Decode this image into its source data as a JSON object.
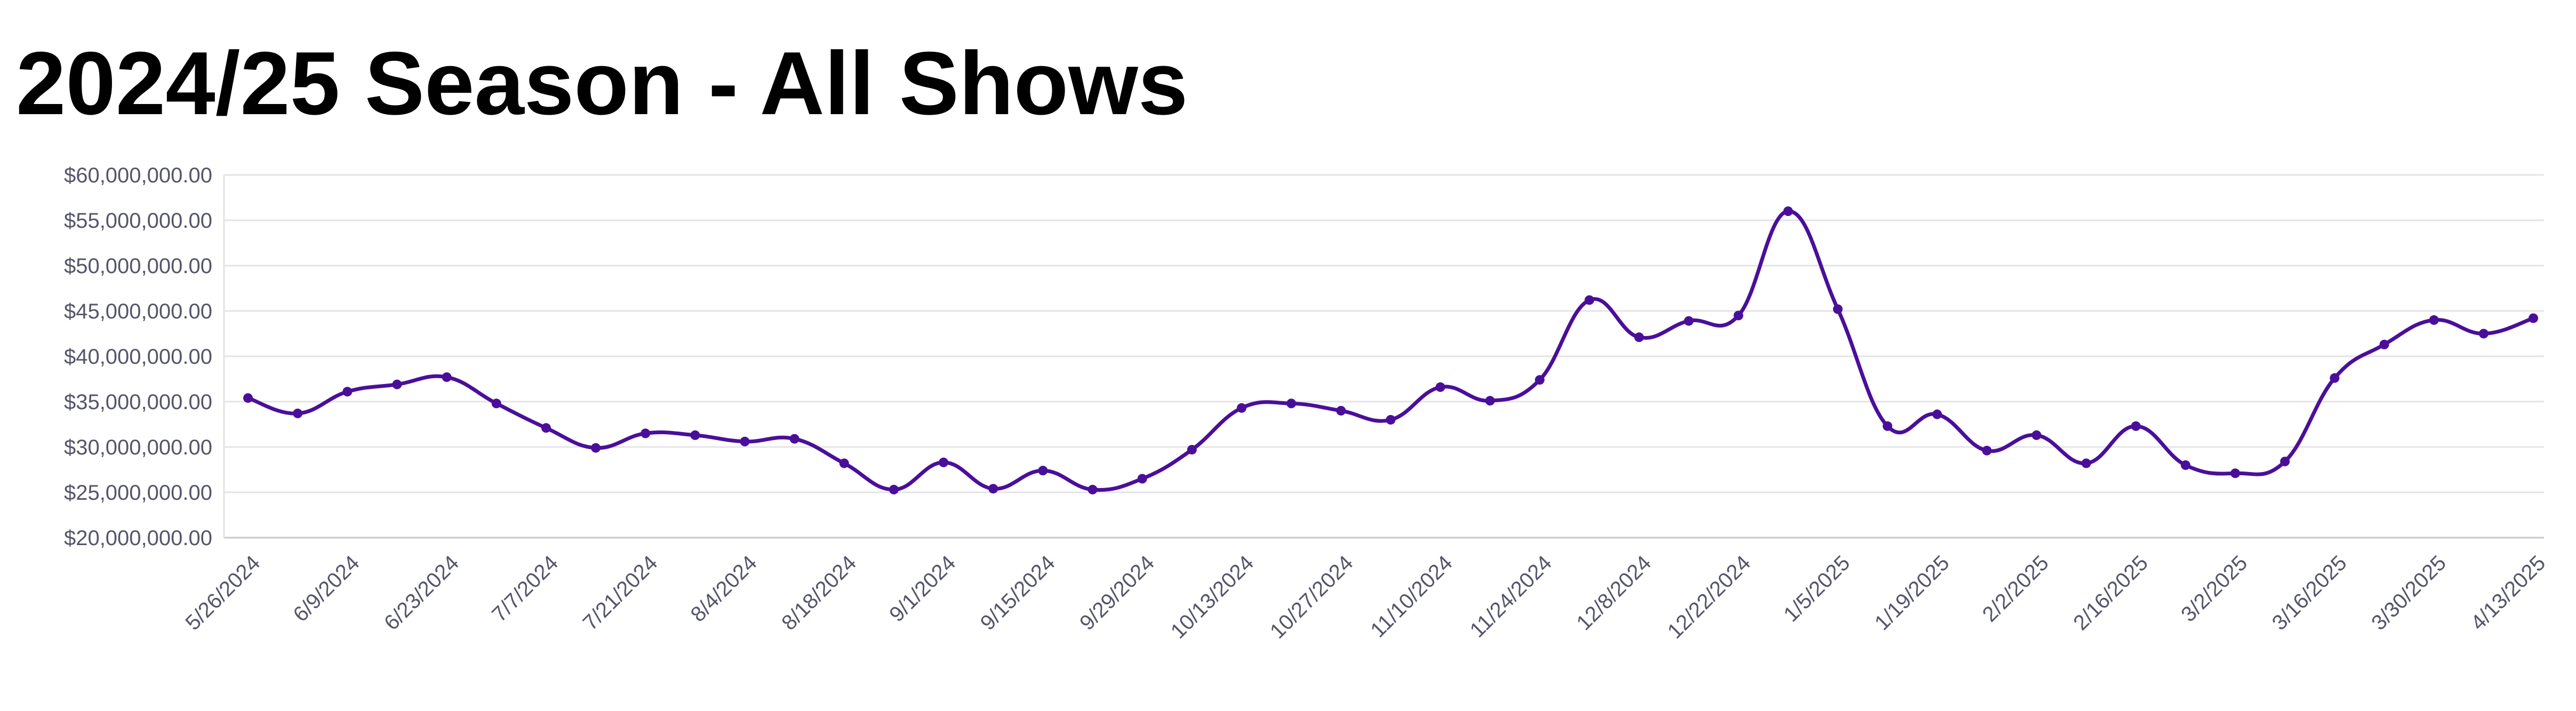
{
  "chart_data": {
    "type": "line",
    "title": "2024/25 Season - All Shows",
    "xlabel": "",
    "ylabel": "",
    "ylim": [
      20000000,
      60000000
    ],
    "yticks": [
      "$20,000,000.00",
      "$25,000,000.00",
      "$30,000,000.00",
      "$35,000,000.00",
      "$40,000,000.00",
      "$45,000,000.00",
      "$50,000,000.00",
      "$55,000,000.00",
      "$60,000,000.00"
    ],
    "xtick_labels": [
      "5/26/2024",
      "6/9/2024",
      "6/23/2024",
      "7/7/2024",
      "7/21/2024",
      "8/4/2024",
      "8/18/2024",
      "9/1/2024",
      "9/15/2024",
      "9/29/2024",
      "10/13/2024",
      "10/27/2024",
      "11/10/2024",
      "11/24/2024",
      "12/8/2024",
      "12/22/2024",
      "1/5/2025",
      "1/19/2025",
      "2/2/2025",
      "2/16/2025",
      "3/2/2025",
      "3/16/2025",
      "3/30/2025",
      "4/13/2025"
    ],
    "x": [
      "5/26/2024",
      "6/2/2024",
      "6/9/2024",
      "6/16/2024",
      "6/23/2024",
      "6/30/2024",
      "7/7/2024",
      "7/14/2024",
      "7/21/2024",
      "7/28/2024",
      "8/4/2024",
      "8/11/2024",
      "8/18/2024",
      "8/25/2024",
      "9/1/2024",
      "9/8/2024",
      "9/15/2024",
      "9/22/2024",
      "9/29/2024",
      "10/6/2024",
      "10/13/2024",
      "10/20/2024",
      "10/27/2024",
      "11/3/2024",
      "11/10/2024",
      "11/17/2024",
      "11/24/2024",
      "12/1/2024",
      "12/8/2024",
      "12/15/2024",
      "12/22/2024",
      "12/29/2024",
      "1/5/2025",
      "1/12/2025",
      "1/19/2025",
      "1/26/2025",
      "2/2/2025",
      "2/9/2025",
      "2/16/2025",
      "2/23/2025",
      "3/2/2025",
      "3/9/2025",
      "3/16/2025",
      "3/23/2025",
      "3/30/2025",
      "4/6/2025",
      "4/13/2025"
    ],
    "series": [
      {
        "values": [
          35400000,
          33700000,
          36100000,
          36900000,
          37700000,
          34800000,
          32100000,
          29900000,
          31500000,
          31300000,
          30600000,
          30900000,
          28200000,
          25300000,
          28300000,
          25400000,
          27400000,
          25300000,
          26500000,
          29700000,
          34300000,
          34800000,
          34000000,
          33000000,
          36600000,
          35100000,
          37400000,
          46200000,
          42100000,
          43900000,
          44500000,
          56000000,
          45200000,
          32300000,
          33600000,
          29600000,
          31300000,
          28200000,
          32300000,
          28000000,
          27100000,
          28400000,
          37600000,
          41300000,
          44000000,
          42500000,
          44200000
        ]
      }
    ],
    "grid": true,
    "legend": "none",
    "colors": {
      "line": "#4a0f9a",
      "grid": "#e4e4e8",
      "axis": "#c8c8d0",
      "text": "#55556a"
    }
  }
}
